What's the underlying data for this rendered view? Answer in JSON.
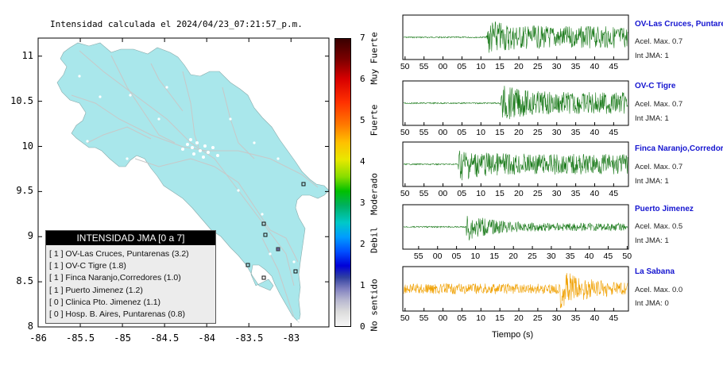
{
  "map": {
    "title": "Intensidad calculada el 2024/04/23_07:21:57_p.m.",
    "y_ticks": [
      "11",
      "10.5",
      "10",
      "9.5",
      "9",
      "8.5",
      "8"
    ],
    "y_values": [
      11,
      10.5,
      10,
      9.5,
      9,
      8.5,
      8
    ],
    "x_ticks": [
      "-86",
      "-85.5",
      "-85",
      "-84.5",
      "-84",
      "-83.5",
      "-83"
    ],
    "x_values": [
      -86,
      -85.5,
      -85,
      -84.5,
      -84,
      -83.5,
      -83
    ],
    "xlim": [
      -86,
      -82.55
    ],
    "ylim": [
      8,
      11.2
    ],
    "land_color": "#a9e7eb",
    "road_color": "#c8c8c8"
  },
  "legend": {
    "title": "INTENSIDAD JMA [0 a 7]",
    "rows": [
      "[ 1 ] OV-Las Cruces, Puntarenas (3.2)",
      "[ 1 ] OV-C Tigre (1.8)",
      "[ 1 ] Finca Naranjo,Corredores (1.0)",
      "[ 1 ] Puerto Jimenez (1.2)",
      "[ 0 ] Clinica Pto. Jimenez (1.1)",
      "[ 0 ] Hosp. B. Aires, Puntarenas (0.8)"
    ]
  },
  "colorbar": {
    "values": [
      "7",
      "6",
      "5",
      "4",
      "3",
      "2",
      "1",
      "0"
    ],
    "labels": [
      "Muy Fuerte",
      "Fuerte",
      "Moderado",
      "Debil",
      "No sentido"
    ]
  },
  "waveforms": {
    "xlabel": "Tiempo (s)",
    "tick_labels_a": [
      "50",
      "55",
      "00",
      "05",
      "10",
      "15",
      "20",
      "25",
      "30",
      "35",
      "40",
      "45"
    ],
    "tick_labels_b": [
      "55",
      "00",
      "05",
      "10",
      "15",
      "20",
      "25",
      "30",
      "35",
      "40",
      "45",
      "50"
    ],
    "stations": [
      {
        "name": "OV-Las Cruces, Puntarenas",
        "acel": "Acel. Max. 0.7",
        "int": "Int JMA: 1",
        "color": "#1a7a1a"
      },
      {
        "name": "OV-C Tigre",
        "acel": "Acel. Max. 0.7",
        "int": "Int JMA: 1",
        "color": "#1a7a1a"
      },
      {
        "name": "Finca Naranjo,Corredores",
        "acel": "Acel. Max. 0.7",
        "int": "Int JMA: 1",
        "color": "#1a7a1a"
      },
      {
        "name": "Puerto Jimenez",
        "acel": "Acel. Max. 0.5",
        "int": "Int JMA: 1",
        "color": "#1a7a1a"
      },
      {
        "name": "La Sabana",
        "acel": "Acel. Max. 0.0",
        "int": "Int JMA: 0",
        "color": "#f0a000"
      }
    ]
  }
}
